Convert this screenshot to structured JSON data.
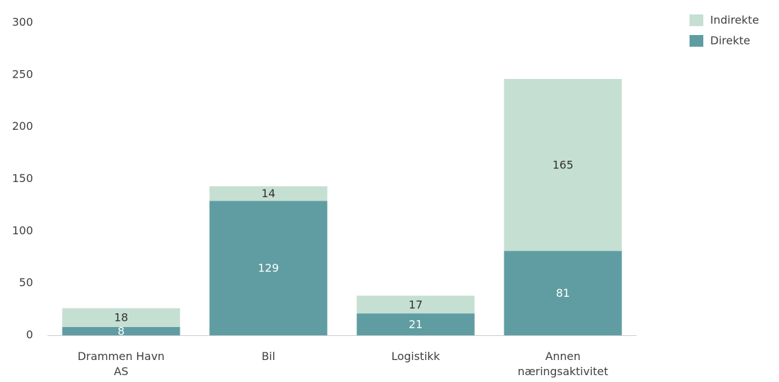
{
  "chart_data": {
    "type": "stacked_bar",
    "categories": [
      "Drammen Havn AS",
      "Bil",
      "Logistikk",
      "Annen næringsaktivitet"
    ],
    "series": [
      {
        "name": "Direkte",
        "color": "#5f9da2",
        "label_color": "#ffffff",
        "values": [
          8,
          129,
          21,
          81
        ]
      },
      {
        "name": "Indirekte",
        "color": "#c6dfd3",
        "label_color": "#333333",
        "values": [
          18,
          14,
          17,
          165
        ]
      }
    ],
    "ylim": [
      0,
      300
    ],
    "yticks": [
      0,
      50,
      100,
      150,
      200,
      250,
      300
    ],
    "grid": false,
    "legend": "top-right"
  }
}
